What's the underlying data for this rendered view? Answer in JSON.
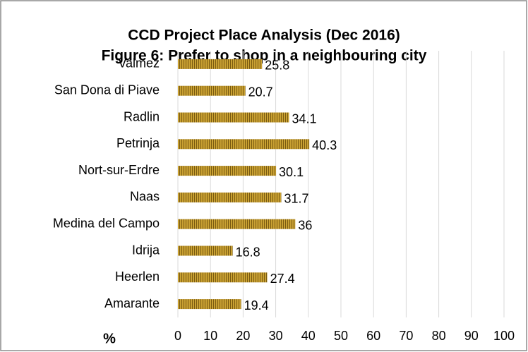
{
  "chart_data": {
    "type": "bar",
    "orientation": "horizontal",
    "title": "CCD Project Place Analysis (Dec 2016)",
    "subtitle": "Figure 6: Prefer to shop in a neighbouring city",
    "x_label": "%",
    "categories": [
      "Valmez",
      "San Dona di Piave",
      "Radlin",
      "Petrinja",
      "Nort-sur-Erdre",
      "Naas",
      "Medina del Campo",
      "Idrija",
      "Heerlen",
      "Amarante"
    ],
    "values": [
      25.8,
      20.7,
      34.1,
      40.3,
      30.1,
      31.7,
      36,
      16.8,
      27.4,
      19.4
    ],
    "color": "#c9a133",
    "xlim": [
      0,
      100
    ],
    "xticks": [
      0,
      10,
      20,
      30,
      40,
      50,
      60,
      70,
      80,
      90,
      100
    ],
    "grid": true
  }
}
